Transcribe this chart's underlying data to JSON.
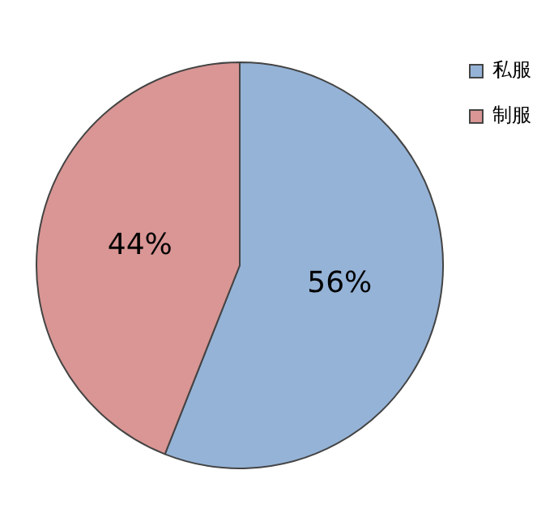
{
  "chart_data": {
    "type": "pie",
    "categories": [
      "私服",
      "制服"
    ],
    "values": [
      56,
      44
    ],
    "colors": [
      "#95b3d7",
      "#d99694"
    ],
    "value_labels": [
      "56%",
      "44%"
    ],
    "legend": "top right"
  }
}
